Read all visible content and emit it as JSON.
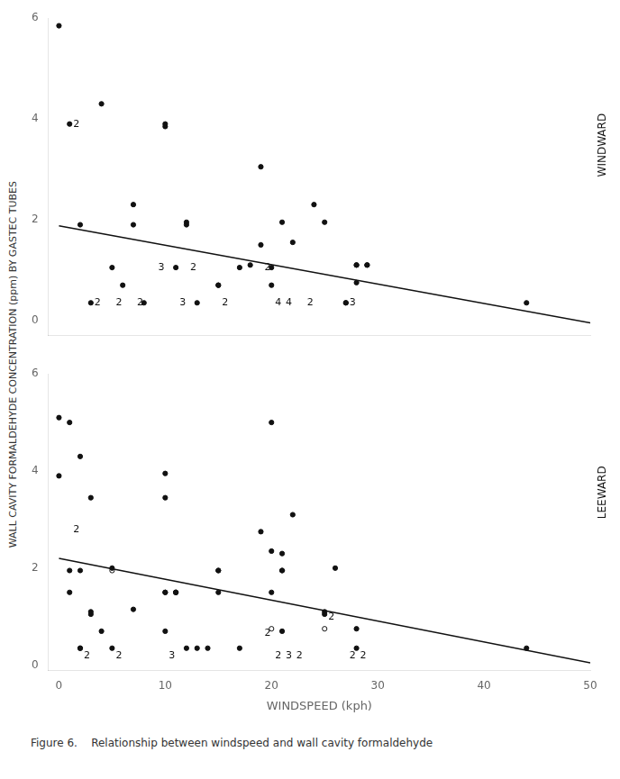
{
  "chart_data": {
    "type": "scatter",
    "ylabel": "WALL CAVITY FORMALDEHYDE CONCENTRATION (ppm) BY GASTEC TUBES",
    "caption": "Figure 6.    Relationship between windspeed and wall cavity formaldehyde",
    "grid": false,
    "panels": [
      {
        "side_label": "WINDWARD",
        "xlim": [
          -1,
          50
        ],
        "xticks": [
          0,
          10,
          20,
          30,
          40,
          50
        ],
        "ylim": [
          -0.3,
          6
        ],
        "yticks": [
          0,
          2,
          4,
          6
        ],
        "tick_labels": "y",
        "series": [
          {
            "type": "scatter",
            "marker": "circle",
            "color": "#111111",
            "x": [
              0,
              1,
              2,
              3,
              4,
              5,
              6,
              7,
              7,
              8,
              10,
              10,
              11,
              12,
              12,
              13,
              15,
              15,
              17,
              18,
              19,
              19,
              20,
              20,
              21,
              22,
              24,
              25,
              27,
              27,
              28,
              28,
              28,
              29,
              29,
              44
            ],
            "values": [
              5.85,
              3.9,
              1.9,
              0.35,
              4.3,
              1.05,
              0.7,
              2.3,
              1.9,
              0.35,
              3.9,
              3.85,
              1.05,
              1.9,
              1.95,
              0.35,
              0.7,
              0.7,
              1.05,
              1.1,
              3.05,
              1.5,
              1.05,
              0.7,
              1.95,
              1.55,
              2.3,
              1.95,
              0.35,
              0.35,
              0.75,
              1.1,
              1.1,
              1.1,
              1.1,
              0.35
            ]
          },
          {
            "type": "line",
            "line_style": "solid",
            "color": "#111111",
            "x": [
              0,
              50
            ],
            "values": [
              1.88,
              -0.05
            ]
          }
        ],
        "annotations": [
          {
            "x": 1,
            "y": 3.9,
            "text": "2"
          },
          {
            "x": 3,
            "y": 0.35,
            "text": "2"
          },
          {
            "x": 5,
            "y": 0.35,
            "text": "2"
          },
          {
            "x": 7,
            "y": 0.35,
            "text": "2"
          },
          {
            "x": 9,
            "y": 1.05,
            "text": "3"
          },
          {
            "x": 11,
            "y": 0.35,
            "text": "3"
          },
          {
            "x": 12,
            "y": 1.05,
            "text": "2"
          },
          {
            "x": 15,
            "y": 0.35,
            "text": "2"
          },
          {
            "x": 19,
            "y": 1.05,
            "text": "2"
          },
          {
            "x": 20,
            "y": 0.35,
            "text": "4"
          },
          {
            "x": 21,
            "y": 0.35,
            "text": "4"
          },
          {
            "x": 23,
            "y": 0.35,
            "text": "2"
          },
          {
            "x": 27,
            "y": 0.35,
            "text": "3"
          }
        ]
      },
      {
        "side_label": "LEEWARD",
        "xlabel": "WINDSPEED (kph)",
        "xlim": [
          -1,
          50
        ],
        "xticks": [
          0,
          10,
          20,
          30,
          40,
          50
        ],
        "ylim": [
          -0.1,
          6
        ],
        "yticks": [
          0,
          2,
          4,
          6
        ],
        "tick_labels": true,
        "series": [
          {
            "type": "scatter",
            "marker": "circle",
            "color": "#111111",
            "x": [
              0,
              0,
              1,
              1,
              1,
              2,
              2,
              2,
              2,
              3,
              3,
              3,
              4,
              5,
              5,
              7,
              10,
              10,
              10,
              10,
              10,
              11,
              11,
              11,
              12,
              13,
              14,
              15,
              15,
              15,
              17,
              19,
              20,
              20,
              20,
              21,
              21,
              21,
              21,
              22,
              25,
              25,
              26,
              28,
              28,
              44
            ],
            "values": [
              5.1,
              3.9,
              5.0,
              1.95,
              1.5,
              4.3,
              1.95,
              0.35,
              0.35,
              3.45,
              1.1,
              1.05,
              0.7,
              2.0,
              0.35,
              1.15,
              3.95,
              3.45,
              1.5,
              1.5,
              0.7,
              1.5,
              1.5,
              1.5,
              0.35,
              0.35,
              0.35,
              1.95,
              1.95,
              1.5,
              0.35,
              2.75,
              2.35,
              5.0,
              1.5,
              2.3,
              1.95,
              1.95,
              0.7,
              3.1,
              1.1,
              1.05,
              2.0,
              0.75,
              0.35,
              0.35
            ]
          },
          {
            "type": "scatter",
            "marker": "open",
            "color": "#111111",
            "x": [
              5,
              20,
              25
            ],
            "values": [
              1.95,
              0.75,
              0.75
            ]
          },
          {
            "type": "line",
            "line_style": "solid",
            "color": "#111111",
            "x": [
              0,
              50
            ],
            "values": [
              2.2,
              0.05
            ]
          }
        ],
        "annotations": [
          {
            "x": 1,
            "y": 2.8,
            "text": "2"
          },
          {
            "x": 2,
            "y": 0.2,
            "text": "2"
          },
          {
            "x": 5,
            "y": 0.2,
            "text": "2"
          },
          {
            "x": 10,
            "y": 0.2,
            "text": "3"
          },
          {
            "x": 19,
            "y": 0.65,
            "text": "2"
          },
          {
            "x": 20,
            "y": 0.2,
            "text": "2"
          },
          {
            "x": 21,
            "y": 0.2,
            "text": "3"
          },
          {
            "x": 22,
            "y": 0.2,
            "text": "2"
          },
          {
            "x": 25,
            "y": 1.0,
            "text": "2"
          },
          {
            "x": 27,
            "y": 0.2,
            "text": "2"
          },
          {
            "x": 28,
            "y": 0.2,
            "text": "2"
          }
        ]
      }
    ]
  }
}
